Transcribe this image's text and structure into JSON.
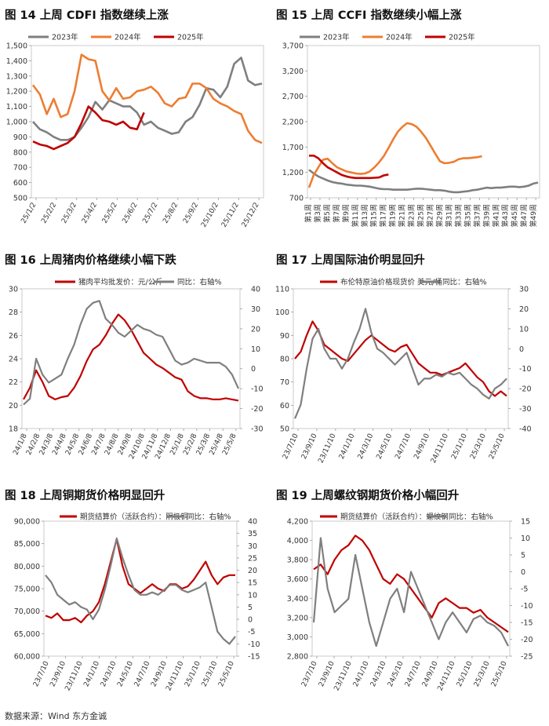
{
  "source": "数据来源：Wind 东方金诚",
  "colors": {
    "c2023": "#7f7f7f",
    "c2024": "#ed7d31",
    "c2025": "#c00000",
    "gray": "#7f7f7f",
    "red": "#c00000"
  },
  "panels": [
    {
      "title": "图 14 上周 CDFI 指数继续上涨",
      "chart_data": {
        "type": "line",
        "legend": [
          "2023年",
          "2024年",
          "2025年"
        ],
        "y_ticks": [
          "1,500",
          "1,400",
          "1,300",
          "1,200",
          "1,100",
          "1,000",
          "900",
          "800",
          "700",
          "600",
          "500"
        ],
        "ylim": [
          500,
          1500
        ],
        "x_ticks": [
          "25/1/2",
          "25/2/2",
          "25/3/2",
          "25/4/2",
          "25/5/2",
          "25/6/2",
          "25/7/2",
          "25/8/2",
          "25/9/2",
          "25/10/2",
          "25/11/2",
          "25/12/2"
        ],
        "series": [
          {
            "name": "2023年",
            "colorKey": "c2023",
            "y": [
              1000,
              950,
              930,
              900,
              880,
              880,
              900,
              960,
              1030,
              1130,
              1080,
              1140,
              1120,
              1100,
              1100,
              1060,
              980,
              1000,
              960,
              940,
              920,
              930,
              1000,
              1030,
              1110,
              1220,
              1210,
              1160,
              1230,
              1380,
              1420,
              1270,
              1240,
              1250
            ]
          },
          {
            "name": "2024年",
            "colorKey": "c2024",
            "y": [
              1240,
              1180,
              1050,
              1150,
              1030,
              1050,
              1200,
              1440,
              1410,
              1400,
              1200,
              1140,
              1220,
              1150,
              1160,
              1200,
              1210,
              1230,
              1190,
              1120,
              1100,
              1150,
              1160,
              1250,
              1250,
              1220,
              1150,
              1120,
              1100,
              1070,
              1050,
              940,
              880,
              860
            ]
          },
          {
            "name": "2025年",
            "colorKey": "c2025",
            "y": [
              870,
              850,
              840,
              820,
              840,
              860,
              900,
              990,
              1100,
              1060,
              1010,
              1000,
              980,
              1000,
              960,
              950,
              1060
            ]
          }
        ]
      }
    },
    {
      "title": "图 15 上周 CCFI 指数继续小幅上涨",
      "chart_data": {
        "type": "line",
        "legend": [
          "2023年",
          "2024年",
          "2025年"
        ],
        "y_ticks": [
          "3,700",
          "3,200",
          "2,700",
          "2,200",
          "1,700",
          "1,200",
          "700"
        ],
        "ylim": [
          700,
          3700
        ],
        "x_ticks": [
          "第1周",
          "第3周",
          "第5周",
          "第7周",
          "第9周",
          "第11周",
          "第13周",
          "第15周",
          "第17周",
          "第19周",
          "第21周",
          "第23周",
          "第25周",
          "第27周",
          "第29周",
          "第31周",
          "第33周",
          "第35周",
          "第37周",
          "第39周",
          "第41周",
          "第43周",
          "第45周",
          "第47周",
          "第49周"
        ],
        "series": [
          {
            "name": "2023年",
            "colorKey": "c2023",
            "y": [
              1250,
              1180,
              1120,
              1080,
              1040,
              1010,
              990,
              980,
              960,
              950,
              940,
              940,
              930,
              920,
              900,
              880,
              870,
              870,
              860,
              860,
              860,
              860,
              870,
              880,
              880,
              870,
              860,
              850,
              850,
              840,
              820,
              810,
              810,
              820,
              830,
              850,
              860,
              880,
              900,
              890,
              900,
              900,
              910,
              920,
              920,
              910,
              920,
              940,
              980,
              1000
            ]
          },
          {
            "name": "2024年",
            "colorKey": "c2024",
            "y": [
              900,
              1150,
              1300,
              1450,
              1470,
              1380,
              1300,
              1260,
              1220,
              1200,
              1180,
              1170,
              1180,
              1220,
              1300,
              1400,
              1520,
              1680,
              1850,
              2000,
              2100,
              2170,
              2150,
              2100,
              2000,
              1880,
              1730,
              1570,
              1420,
              1380,
              1390,
              1410,
              1460,
              1480,
              1480,
              1490,
              1500,
              1520
            ]
          },
          {
            "name": "2025年",
            "colorKey": "c2025",
            "y": [
              1530,
              1530,
              1480,
              1380,
              1300,
              1250,
              1200,
              1150,
              1120,
              1100,
              1090,
              1090,
              1090,
              1090,
              1095,
              1100,
              1140,
              1160
            ]
          }
        ]
      }
    },
    {
      "title": "图 16 上周猪肉价格继续小幅下跌",
      "chart_data": {
        "type": "line",
        "legend": [
          "猪肉平均批发价：元/公斤",
          "同比：右轴%"
        ],
        "y_ticks": [
          "30",
          "28",
          "26",
          "24",
          "22",
          "20",
          "18"
        ],
        "ylim": [
          18,
          30
        ],
        "y2_ticks": [
          "40",
          "30",
          "20",
          "10",
          "0",
          "-10",
          "-20",
          "-30"
        ],
        "y2lim": [
          -30,
          40
        ],
        "x_ticks": [
          "24/1/8",
          "24/2/8",
          "24/3/8",
          "24/4/8",
          "24/5/8",
          "24/6/8",
          "24/7/8",
          "24/8/8",
          "24/9/8",
          "24/10/8",
          "24/11/8",
          "24/12/8",
          "25/1/8",
          "25/2/8",
          "25/3/8",
          "25/4/8",
          "25/5/8"
        ],
        "series": [
          {
            "name": "猪肉平均批发价：元/公斤",
            "colorKey": "red",
            "axis": "left",
            "y": [
              20.5,
              21.5,
              23,
              22,
              20.8,
              20.5,
              20.7,
              20.8,
              21.5,
              22.5,
              23.8,
              24.8,
              25.2,
              26,
              27,
              27.8,
              27.3,
              26.5,
              25.5,
              24.5,
              24,
              23.5,
              23.2,
              22.8,
              22.4,
              22.2,
              21.2,
              20.8,
              20.6,
              20.6,
              20.5,
              20.5,
              20.6,
              20.5,
              20.4
            ]
          },
          {
            "name": "同比：右轴%",
            "colorKey": "gray",
            "axis": "right",
            "y": [
              -18,
              -15,
              5,
              -3,
              -7,
              -5,
              -3,
              5,
              12,
              22,
              30,
              33,
              34,
              25,
              22,
              18,
              16,
              19,
              22,
              20,
              19,
              17,
              16,
              10,
              4,
              2,
              3,
              5,
              4,
              3,
              3,
              3,
              1,
              -3,
              -10
            ]
          }
        ]
      }
    },
    {
      "title": "图 17 上周国际油价明显回升",
      "chart_data": {
        "type": "line",
        "legend": [
          "布伦特原油价格现货价 美元/桶",
          "同比：右轴%"
        ],
        "y_ticks": [
          "110",
          "100",
          "90",
          "80",
          "70",
          "60",
          "50"
        ],
        "ylim": [
          50,
          110
        ],
        "y2_ticks": [
          "30",
          "20",
          "10",
          "0",
          "-10",
          "-20",
          "-30",
          "-40"
        ],
        "y2lim": [
          -40,
          30
        ],
        "x_ticks": [
          "23/7/10",
          "23/9/10",
          "23/11/10",
          "24/1/10",
          "24/3/10",
          "24/5/10",
          "24/7/10",
          "24/9/10",
          "24/11/10",
          "25/1/10",
          "25/3/10",
          "25/5/10"
        ],
        "series": [
          {
            "name": "布伦特原油价格现货价 美元/桶",
            "colorKey": "red",
            "axis": "left",
            "y": [
              80,
              83,
              90,
              96,
              92,
              86,
              84,
              82,
              80,
              79,
              82,
              85,
              88,
              90,
              88,
              86,
              84,
              83,
              85,
              86,
              82,
              78,
              76,
              74,
              74,
              73,
              74,
              75,
              76,
              78,
              75,
              72,
              70,
              66,
              64,
              66,
              64
            ]
          },
          {
            "name": "同比：右轴%",
            "colorKey": "gray",
            "axis": "right",
            "y": [
              -35,
              -28,
              -10,
              5,
              10,
              0,
              -5,
              -5,
              -10,
              -5,
              3,
              10,
              20,
              8,
              0,
              -2,
              -5,
              -8,
              -5,
              -2,
              -10,
              -18,
              -15,
              -15,
              -13,
              -14,
              -12,
              -13,
              -12,
              -15,
              -18,
              -20,
              -23,
              -25,
              -20,
              -18,
              -15
            ]
          }
        ]
      }
    },
    {
      "title": "图 18 上周铜期货价格明显回升",
      "chart_data": {
        "type": "line",
        "legend": [
          "期货结算价（活跃合约）：阴极铜",
          "同比：右轴%"
        ],
        "y_ticks": [
          "90,000",
          "85,000",
          "80,000",
          "75,000",
          "70,000",
          "65,000",
          "60,000"
        ],
        "ylim": [
          60000,
          90000
        ],
        "y2_ticks": [
          "40",
          "35",
          "30",
          "25",
          "20",
          "15",
          "10",
          "5",
          "0",
          "-5",
          "-10",
          "-15"
        ],
        "y2lim": [
          -15,
          40
        ],
        "x_ticks": [
          "23/7/10",
          "23/9/10",
          "23/11/10",
          "24/1/10",
          "24/3/10",
          "24/5/10",
          "24/7/10",
          "24/9/10",
          "24/11/10",
          "25/1/10",
          "25/3/10",
          "25/5/10"
        ],
        "series": [
          {
            "name": "期货结算价（活跃合约）：阴极铜",
            "colorKey": "red",
            "axis": "left",
            "y": [
              69000,
              68500,
              69500,
              68000,
              68000,
              68500,
              67500,
              69000,
              70000,
              72000,
              76000,
              81000,
              86000,
              80000,
              76000,
              75000,
              74000,
              75000,
              76000,
              75000,
              74500,
              76000,
              76000,
              75000,
              75500,
              77000,
              79000,
              81000,
              78000,
              76000,
              77500,
              78000,
              78000
            ]
          },
          {
            "name": "同比：右轴%",
            "colorKey": "gray",
            "axis": "right",
            "y": [
              18,
              15,
              10,
              8,
              6,
              7,
              5,
              4,
              0,
              4,
              12,
              22,
              33,
              25,
              18,
              12,
              10,
              10,
              11,
              10,
              12,
              14,
              14,
              12,
              11,
              12,
              13,
              15,
              5,
              -5,
              -8,
              -10,
              -7
            ]
          }
        ]
      }
    },
    {
      "title": "图 19 上周螺纹钢期货价格小幅回升",
      "chart_data": {
        "type": "line",
        "legend": [
          "期货结算价（活跃合约）：螺纹钢",
          "同比：右轴%"
        ],
        "y_ticks": [
          "4,200",
          "4,000",
          "3,800",
          "3,600",
          "3,400",
          "3,200",
          "3,000",
          "2,800"
        ],
        "ylim": [
          2800,
          4200
        ],
        "y2_ticks": [
          "15",
          "10",
          "5",
          "0",
          "-5",
          "-10",
          "-15",
          "-20",
          "-25"
        ],
        "y2lim": [
          -25,
          15
        ],
        "x_ticks": [
          "23/7/10",
          "23/9/10",
          "23/11/10",
          "24/1/10",
          "24/3/10",
          "24/5/10",
          "24/7/10",
          "24/9/10",
          "24/11/10",
          "25/1/10",
          "25/3/10",
          "25/5/10"
        ],
        "series": [
          {
            "name": "期货结算价（活跃合约）：螺纹钢",
            "colorKey": "red",
            "axis": "left",
            "y": [
              3700,
              3750,
              3650,
              3800,
              3900,
              3950,
              4050,
              4000,
              3900,
              3750,
              3600,
              3550,
              3650,
              3600,
              3500,
              3400,
              3300,
              3200,
              3350,
              3400,
              3350,
              3300,
              3300,
              3250,
              3280,
              3200,
              3150,
              3100,
              3050
            ]
          },
          {
            "name": "同比：右轴%",
            "colorKey": "gray",
            "axis": "right",
            "y": [
              -15,
              10,
              -5,
              -12,
              -10,
              -8,
              5,
              -5,
              -15,
              -22,
              -15,
              -8,
              -5,
              -12,
              0,
              -5,
              -10,
              -15,
              -20,
              -15,
              -12,
              -15,
              -18,
              -14,
              -13,
              -15,
              -16,
              -18,
              -22
            ]
          }
        ]
      }
    }
  ]
}
